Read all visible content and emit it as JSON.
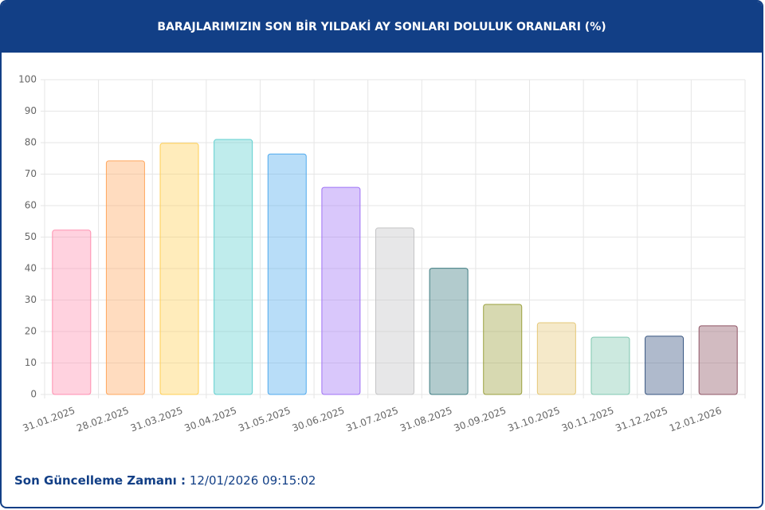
{
  "chart_data": {
    "type": "bar",
    "title": "BARAJLARIMIZIN SON BİR YILDAKİ AY SONLARI DOLULUK ORANLARI (%)",
    "categories": [
      "31.01.2025",
      "28.02.2025",
      "31.03.2025",
      "30.04.2025",
      "31.05.2025",
      "30.06.2025",
      "31.07.2025",
      "31.08.2025",
      "30.09.2025",
      "31.10.2025",
      "30.11.2025",
      "31.12.2025",
      "12.01.2026"
    ],
    "values": [
      52.2,
      74.2,
      79.8,
      81,
      76.4,
      65.8,
      52.9,
      40.1,
      28.6,
      22.8,
      18.2,
      18.5,
      21.8
    ],
    "colors": [
      "#ff8fb0",
      "#ffa75e",
      "#ffcf55",
      "#5fcfcf",
      "#4ea9ee",
      "#9f72f5",
      "#c4c4c6",
      "#3f7c82",
      "#9aa03d",
      "#e5c877",
      "#7fc7b0",
      "#36537f",
      "#8f5565"
    ],
    "ylim": [
      0,
      100
    ],
    "yticks": [
      0,
      10,
      20,
      30,
      40,
      50,
      60,
      70,
      80,
      90,
      100
    ],
    "grid": true
  },
  "footer": {
    "label": "Son Güncelleme Zamanı :",
    "value": "12/01/2026 09:15:02"
  }
}
